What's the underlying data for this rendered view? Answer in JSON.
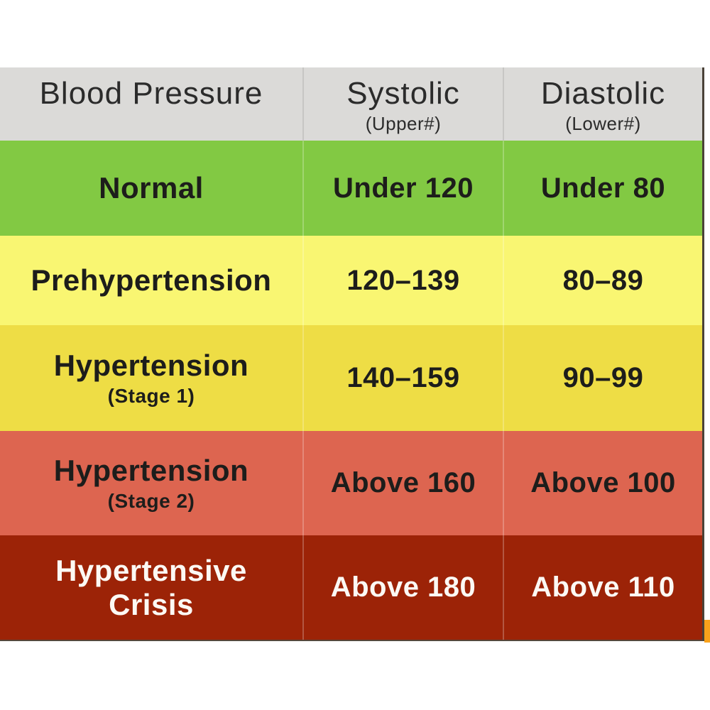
{
  "table": {
    "header": {
      "col1": {
        "title": "Blood Pressure",
        "subtitle": ""
      },
      "col2": {
        "title": "Systolic",
        "subtitle": "(Upper#)"
      },
      "col3": {
        "title": "Diastolic",
        "subtitle": "(Lower#)"
      },
      "bg": "#dbdad8"
    },
    "rows": [
      {
        "category": "Normal",
        "category_sub": "",
        "systolic": "Under 120",
        "diastolic": "Under 80",
        "bg": "#82c943",
        "text_color": "#1d1d1b"
      },
      {
        "category": "Prehypertension",
        "category_sub": "",
        "systolic": "120–139",
        "diastolic": "80–89",
        "bg": "#f9f672",
        "text_color": "#1d1d1b"
      },
      {
        "category": "Hypertension",
        "category_sub": "(Stage 1)",
        "systolic": "140–159",
        "diastolic": "90–99",
        "bg": "#eedd45",
        "text_color": "#1d1d1b"
      },
      {
        "category": "Hypertension",
        "category_sub": "(Stage 2)",
        "systolic": "Above 160",
        "diastolic": "Above 100",
        "bg": "#dd6550",
        "text_color": "#1d1d1b"
      },
      {
        "category": "Hypertensive Crisis",
        "category_sub": "",
        "systolic": "Above 180",
        "diastolic": "Above 110",
        "bg": "#9c2307",
        "text_color": "#fcf9f4"
      }
    ]
  },
  "colors": {
    "page_bg": "#ffffff",
    "header_bg": "#dbdad8",
    "normal_green": "#82c943",
    "prehypertension_yellow": "#f9f672",
    "stage1_gold": "#eedd45",
    "stage2_salmon": "#dd6550",
    "crisis_dark_red": "#9c2307",
    "table_border": "#4a4238",
    "edge_accent_orange": "#f9a21b"
  },
  "chart_data": {
    "type": "table",
    "title": "Blood Pressure",
    "columns": [
      "Blood Pressure",
      "Systolic (Upper#)",
      "Diastolic (Lower#)"
    ],
    "rows": [
      [
        "Normal",
        "Under 120",
        "Under 80"
      ],
      [
        "Prehypertension",
        "120–139",
        "80–89"
      ],
      [
        "Hypertension (Stage 1)",
        "140–159",
        "90–99"
      ],
      [
        "Hypertension (Stage 2)",
        "Above 160",
        "Above 100"
      ],
      [
        "Hypertensive Crisis",
        "Above 180",
        "Above 110"
      ]
    ],
    "row_colors": [
      "#82c943",
      "#f9f672",
      "#eedd45",
      "#dd6550",
      "#9c2307"
    ],
    "legend_position": "none",
    "grid": false
  }
}
